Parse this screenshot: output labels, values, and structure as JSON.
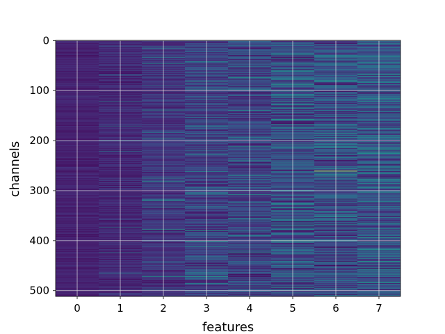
{
  "chart_data": {
    "type": "heatmap",
    "title": "",
    "xlabel": "features",
    "ylabel": "channels",
    "x_categories": [
      "0",
      "1",
      "2",
      "3",
      "4",
      "5",
      "6",
      "7"
    ],
    "y_ticks": [
      "0",
      "100",
      "200",
      "300",
      "400",
      "500"
    ],
    "y_tick_values": [
      0,
      100,
      200,
      300,
      400,
      500
    ],
    "n_channels": 512,
    "n_features": 8,
    "xlim": [
      -0.5,
      7.5
    ],
    "ylim": [
      511.5,
      -0.5
    ],
    "grid": true,
    "colormap": "viridis",
    "value_range": [
      0,
      1
    ],
    "column_profiles": [
      {
        "feature": 0,
        "mean": 0.1,
        "spread": 0.05,
        "hot_fraction": 0.0
      },
      {
        "feature": 1,
        "mean": 0.12,
        "spread": 0.08,
        "hot_fraction": 0.02
      },
      {
        "feature": 2,
        "mean": 0.16,
        "spread": 0.1,
        "hot_fraction": 0.04
      },
      {
        "feature": 3,
        "mean": 0.2,
        "spread": 0.14,
        "hot_fraction": 0.06
      },
      {
        "feature": 4,
        "mean": 0.2,
        "spread": 0.16,
        "hot_fraction": 0.05
      },
      {
        "feature": 5,
        "mean": 0.24,
        "spread": 0.2,
        "hot_fraction": 0.08
      },
      {
        "feature": 6,
        "mean": 0.24,
        "spread": 0.2,
        "hot_fraction": 0.08
      },
      {
        "feature": 7,
        "mean": 0.26,
        "spread": 0.2,
        "hot_fraction": 0.09
      }
    ],
    "highlights": [
      {
        "feature": 6,
        "channel": 261,
        "value": 1.0
      },
      {
        "feature": 5,
        "channel": 400,
        "value": 0.85
      },
      {
        "feature": 6,
        "channel": 211,
        "value": 0.5
      },
      {
        "feature": 5,
        "channel": 60,
        "value": 0.45
      },
      {
        "feature": 6,
        "channel": 90,
        "value": 0.45
      }
    ],
    "colors": {
      "low": "#3b4f8c",
      "mid": "#21918c",
      "high": "#fde725",
      "grid": "#e8e8e8"
    }
  }
}
